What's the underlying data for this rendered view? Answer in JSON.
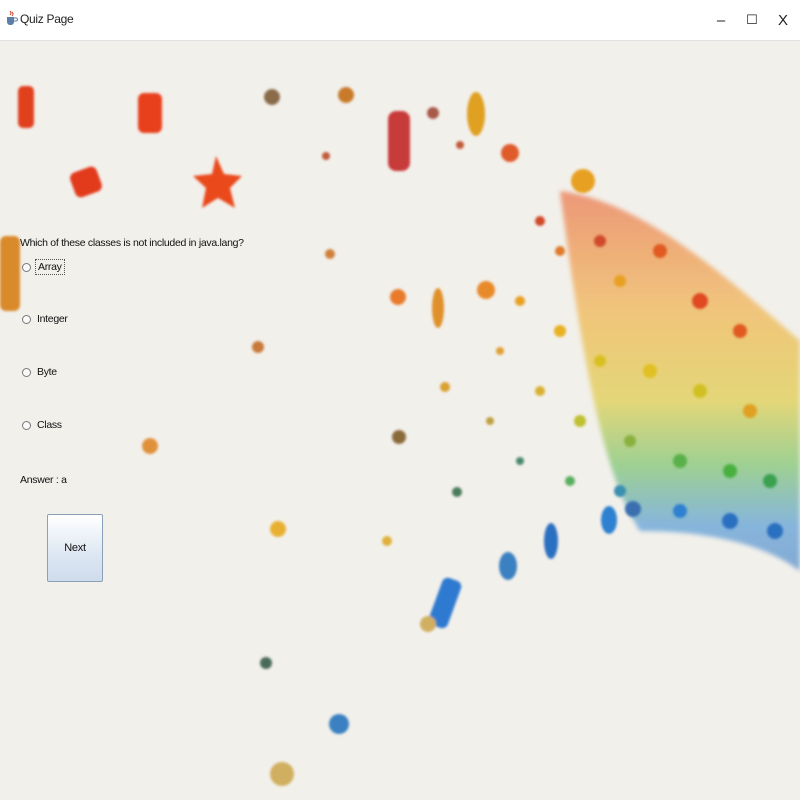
{
  "window": {
    "title": "Quiz Page",
    "minimize": "–",
    "maximize": "☐",
    "close": "X"
  },
  "quiz": {
    "question": "Which of these classes is not included in java.lang?",
    "options": [
      "Array",
      "Integer",
      "Byte",
      "Class"
    ],
    "answer": "Answer : a",
    "next_label": "Next"
  },
  "icons": {
    "app": "java-cup-icon"
  }
}
